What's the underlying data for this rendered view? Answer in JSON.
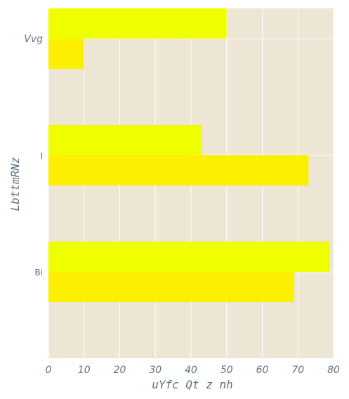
{
  "chart_data": {
    "type": "bar",
    "orientation": "horizontal",
    "title": "",
    "xlabel": "uYfc Qt z  nh",
    "ylabel": "LbttmRNz",
    "categories": [
      "Vvg",
      "I",
      "Bi"
    ],
    "category_italic": [
      true,
      false,
      false
    ],
    "series": [
      {
        "color": "#f0ff00",
        "values": [
          50,
          43,
          79
        ]
      },
      {
        "color": "#fcf000",
        "values": [
          10,
          73,
          69
        ]
      }
    ],
    "xlim": [
      0,
      80
    ],
    "xticks": [
      0,
      10,
      20,
      30,
      40,
      50,
      60,
      70,
      80
    ],
    "grid": true,
    "colors": {
      "plot_background": "#ede6d5",
      "grid": "#ffffff",
      "text": "#5e7280"
    }
  }
}
